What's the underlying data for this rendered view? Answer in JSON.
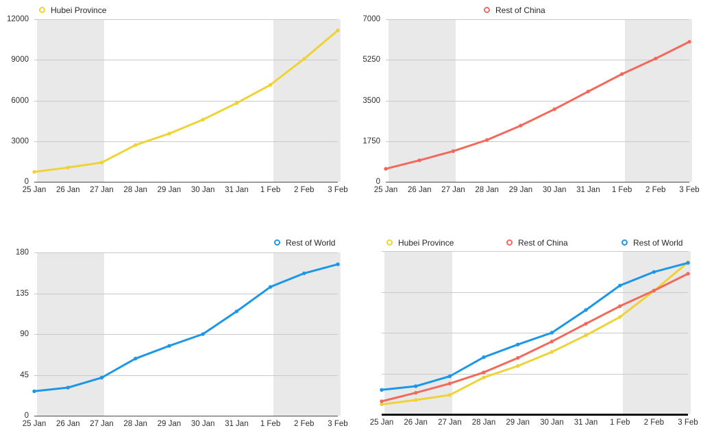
{
  "figure": {
    "description": "Four line charts of cumulative confirmed cases, 25 Jan to 3 Feb",
    "background": "#ffffff"
  },
  "colors": {
    "hubei": "#efd335",
    "rest_of_china": "#f2695c",
    "rest_of_world": "#1a97e8",
    "weekend_band": "#e9e9e9",
    "gridline": "#c9c9c9",
    "axis_line": "#4a4a4a",
    "combined_axis_line": "#141414",
    "tick_label": "#2e2e2e",
    "legend_label": "#262626"
  },
  "chart_data": [
    {
      "type": "line",
      "position": "top-left",
      "title": "",
      "categories": [
        "25 Jan",
        "26 Jan",
        "27 Jan",
        "28 Jan",
        "29 Jan",
        "30 Jan",
        "31 Jan",
        "1 Feb",
        "2 Feb",
        "3 Feb"
      ],
      "series": [
        {
          "name": "Hubei Province",
          "color": "#efd335",
          "axis_max": 12000,
          "values": [
            729,
            1052,
            1423,
            2714,
            3554,
            4586,
            5806,
            7153,
            9074,
            11177
          ]
        }
      ],
      "y_tick_labels": [
        "12000",
        "9000",
        "6000",
        "3000",
        "0"
      ],
      "ylim": [
        0,
        12000
      ],
      "grid": "horizontal",
      "legend_position": "top-left",
      "shaded_x_bands": [
        [
          "25 Jan",
          "27 Jan"
        ],
        [
          "1 Feb",
          "3 Feb"
        ]
      ]
    },
    {
      "type": "line",
      "position": "top-right",
      "title": "",
      "categories": [
        "25 Jan",
        "26 Jan",
        "27 Jan",
        "28 Jan",
        "29 Jan",
        "30 Jan",
        "31 Jan",
        "1 Feb",
        "2 Feb",
        "3 Feb"
      ],
      "series": [
        {
          "name": "Rest of China",
          "color": "#f2695c",
          "axis_max": 7000,
          "values": [
            558,
            923,
            1321,
            1801,
            2420,
            3125,
            3886,
            4638,
            5306,
            6028
          ]
        }
      ],
      "y_tick_labels": [
        "7000",
        "5250",
        "3500",
        "1750",
        "0"
      ],
      "ylim": [
        0,
        7000
      ],
      "grid": "horizontal",
      "legend_position": "top-center",
      "shaded_x_bands": [
        [
          "25 Jan",
          "27 Jan"
        ],
        [
          "1 Feb",
          "3 Feb"
        ]
      ]
    },
    {
      "type": "line",
      "position": "bottom-left",
      "title": "",
      "categories": [
        "25 Jan",
        "26 Jan",
        "27 Jan",
        "28 Jan",
        "29 Jan",
        "30 Jan",
        "31 Jan",
        "1 Feb",
        "2 Feb",
        "3 Feb"
      ],
      "series": [
        {
          "name": "Rest of World",
          "color": "#1a97e8",
          "axis_max": 180,
          "values": [
            27,
            31,
            42,
            63,
            77,
            90,
            115,
            142,
            157,
            167
          ]
        }
      ],
      "y_tick_labels": [
        "180",
        "135",
        "90",
        "45",
        "0"
      ],
      "ylim": [
        0,
        180
      ],
      "grid": "horizontal",
      "legend_position": "top-right",
      "shaded_x_bands": [
        [
          "25 Jan",
          "27 Jan"
        ],
        [
          "1 Feb",
          "3 Feb"
        ]
      ]
    },
    {
      "type": "line",
      "position": "bottom-right",
      "title": "",
      "note": "combined view; each series plotted normalized to its own axis maximum, no y-axis labels",
      "categories": [
        "25 Jan",
        "26 Jan",
        "27 Jan",
        "28 Jan",
        "29 Jan",
        "30 Jan",
        "31 Jan",
        "1 Feb",
        "2 Feb",
        "3 Feb"
      ],
      "series": [
        {
          "name": "Hubei Province",
          "color": "#efd335",
          "axis_max": 12000,
          "values": [
            729,
            1052,
            1423,
            2714,
            3554,
            4586,
            5806,
            7153,
            9074,
            11177
          ]
        },
        {
          "name": "Rest of China",
          "color": "#f2695c",
          "axis_max": 7000,
          "values": [
            558,
            923,
            1321,
            1801,
            2420,
            3125,
            3886,
            4638,
            5306,
            6028
          ]
        },
        {
          "name": "Rest of World",
          "color": "#1a97e8",
          "axis_max": 180,
          "values": [
            27,
            31,
            42,
            63,
            77,
            90,
            115,
            142,
            157,
            167
          ]
        }
      ],
      "y_tick_labels": [],
      "ylim": [
        0,
        1
      ],
      "grid": "horizontal",
      "legend_position": "top-spread",
      "shaded_x_bands": [
        [
          "25 Jan",
          "27 Jan"
        ],
        [
          "1 Feb",
          "3 Feb"
        ]
      ]
    }
  ]
}
